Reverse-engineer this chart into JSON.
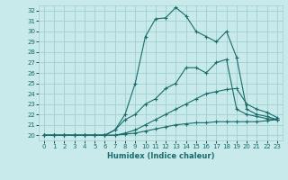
{
  "xlabel": "Humidex (Indice chaleur)",
  "ylabel": "",
  "xlim": [
    -0.5,
    23.5
  ],
  "ylim": [
    19.5,
    32.5
  ],
  "yticks": [
    20,
    21,
    22,
    23,
    24,
    25,
    26,
    27,
    28,
    29,
    30,
    31,
    32
  ],
  "xticks": [
    0,
    1,
    2,
    3,
    4,
    5,
    6,
    7,
    8,
    9,
    10,
    11,
    12,
    13,
    14,
    15,
    16,
    17,
    18,
    19,
    20,
    21,
    22,
    23
  ],
  "bg_color": "#c8eaea",
  "line_color": "#1a6b6b",
  "grid_color": "#a0d0d0",
  "lines": [
    {
      "x": [
        0,
        1,
        2,
        3,
        4,
        5,
        6,
        7,
        8,
        9,
        10,
        11,
        12,
        13,
        14,
        15,
        16,
        17,
        18,
        19,
        20,
        21,
        22,
        23
      ],
      "y": [
        20.0,
        20.0,
        20.0,
        20.0,
        20.0,
        20.0,
        20.0,
        20.0,
        20.1,
        20.2,
        20.4,
        20.6,
        20.8,
        21.0,
        21.1,
        21.2,
        21.2,
        21.3,
        21.3,
        21.3,
        21.3,
        21.3,
        21.4,
        21.5
      ]
    },
    {
      "x": [
        0,
        1,
        2,
        3,
        4,
        5,
        6,
        7,
        8,
        9,
        10,
        11,
        12,
        13,
        14,
        15,
        16,
        17,
        18,
        19,
        20,
        21,
        22,
        23
      ],
      "y": [
        20.0,
        20.0,
        20.0,
        20.0,
        20.0,
        20.0,
        20.0,
        20.0,
        20.2,
        20.5,
        21.0,
        21.5,
        22.0,
        22.5,
        23.0,
        23.5,
        24.0,
        24.2,
        24.4,
        24.5,
        23.0,
        22.5,
        22.2,
        21.7
      ]
    },
    {
      "x": [
        0,
        1,
        2,
        3,
        4,
        5,
        6,
        7,
        8,
        9,
        10,
        11,
        12,
        13,
        14,
        15,
        16,
        17,
        18,
        19,
        20,
        21,
        22,
        23
      ],
      "y": [
        20.0,
        20.0,
        20.0,
        20.0,
        20.0,
        20.0,
        20.0,
        20.5,
        21.5,
        22.0,
        23.0,
        23.5,
        24.5,
        25.0,
        26.5,
        26.5,
        26.0,
        27.0,
        27.3,
        22.5,
        22.0,
        21.8,
        21.6,
        21.5
      ]
    },
    {
      "x": [
        0,
        1,
        2,
        3,
        4,
        5,
        6,
        7,
        8,
        9,
        10,
        11,
        12,
        13,
        14,
        15,
        16,
        17,
        18,
        19,
        20,
        21,
        22,
        23
      ],
      "y": [
        20.0,
        20.0,
        20.0,
        20.0,
        20.0,
        20.0,
        20.0,
        20.5,
        22.0,
        25.0,
        29.5,
        31.2,
        31.3,
        32.3,
        31.5,
        30.0,
        29.5,
        29.0,
        30.0,
        27.5,
        22.5,
        22.0,
        21.8,
        21.5
      ]
    }
  ]
}
